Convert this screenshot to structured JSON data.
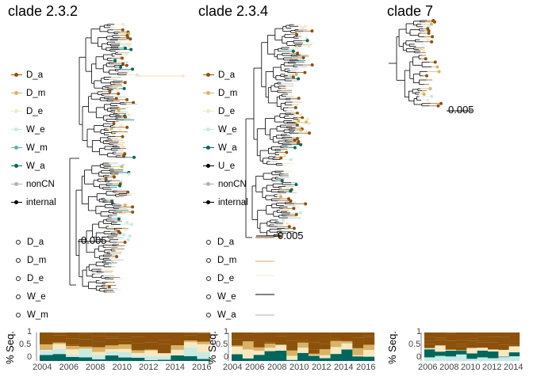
{
  "panels": [
    {
      "title": "clade 2.3.2",
      "scale": "0.005",
      "axis_label": "% Seq.",
      "x_ticks": [
        "2004",
        "2006",
        "2008",
        "2010",
        "2012",
        "2014",
        "2016"
      ],
      "legend": [
        {
          "label": "D_a",
          "color": "#8c510a"
        },
        {
          "label": "D_m",
          "color": "#d8b365"
        },
        {
          "label": "D_e",
          "color": "#f6e8c3"
        },
        {
          "label": "W_e",
          "color": "#c7eae5"
        },
        {
          "label": "W_m",
          "color": "#5ab4ac"
        },
        {
          "label": "W_a",
          "color": "#01665e"
        },
        {
          "label": "nonCN",
          "color": "#b0b0b0"
        },
        {
          "label": "internal",
          "color": "#000000"
        }
      ],
      "dot_legend": [
        "D_a",
        "D_m",
        "D_e",
        "W_e",
        "W_m"
      ]
    },
    {
      "title": "clade 2.3.4",
      "scale": "0.005",
      "axis_label": "% Seq.",
      "x_ticks": [
        "2004",
        "2006",
        "2008",
        "2010",
        "2012",
        "2014",
        "2016"
      ],
      "legend": [
        {
          "label": "D_a",
          "color": "#8c510a"
        },
        {
          "label": "D_m",
          "color": "#d8b365"
        },
        {
          "label": "D_e",
          "color": "#f6e8c3"
        },
        {
          "label": "W_e",
          "color": "#c7eae5"
        },
        {
          "label": "W_a",
          "color": "#01665e"
        },
        {
          "label": "U_e",
          "color": "#000000"
        },
        {
          "label": "nonCN",
          "color": "#b0b0b0"
        },
        {
          "label": "internal",
          "color": "#000000"
        }
      ],
      "dot_legend": [
        "D_a",
        "D_m",
        "D_e",
        "W_e",
        "W_a"
      ]
    },
    {
      "title": "clade 7",
      "scale": "0.005",
      "axis_label": "% Seq.",
      "x_ticks": [
        "2006",
        "2008",
        "2010",
        "2012",
        "2014"
      ]
    }
  ],
  "y_ticks": [
    "1",
    "0.5",
    "0"
  ],
  "colors": {
    "D_a": "#8c510a",
    "D_m": "#d8b365",
    "D_e": "#f6e8c3",
    "W_e": "#c7eae5",
    "W_m": "#5ab4ac",
    "W_a": "#01665e",
    "nonCN": "#b0b0b0"
  }
}
